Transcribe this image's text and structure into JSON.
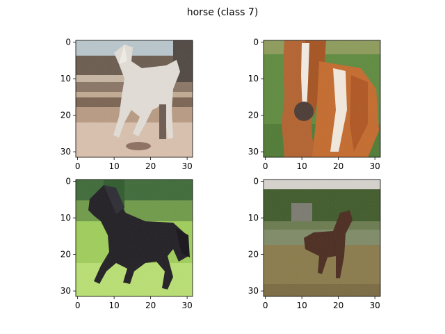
{
  "figure": {
    "title": "horse (class 7)"
  },
  "chart_data": [
    {
      "type": "image",
      "subject": "white horse standing in front of fence",
      "xticks": [
        0,
        10,
        20,
        30
      ],
      "yticks": [
        0,
        10,
        20,
        30
      ],
      "xlim": [
        -0.5,
        31.5
      ],
      "ylim": [
        31.5,
        -0.5
      ]
    },
    {
      "type": "image",
      "subject": "brown and white horse face close-up on grass",
      "xticks": [
        0,
        10,
        20,
        30
      ],
      "yticks": [
        0,
        10,
        20,
        30
      ],
      "xlim": [
        -0.5,
        31.5
      ],
      "ylim": [
        31.5,
        -0.5
      ]
    },
    {
      "type": "image",
      "subject": "black horse trotting on green field",
      "xticks": [
        0,
        10,
        20,
        30
      ],
      "yticks": [
        0,
        10,
        20,
        30
      ],
      "xlim": [
        -0.5,
        31.5
      ],
      "ylim": [
        31.5,
        -0.5
      ]
    },
    {
      "type": "image",
      "subject": "brown horse standing in pasture",
      "xticks": [
        0,
        10,
        20,
        30
      ],
      "yticks": [
        0,
        10,
        20,
        30
      ],
      "xlim": [
        -0.5,
        31.5
      ],
      "ylim": [
        31.5,
        -0.5
      ]
    }
  ]
}
